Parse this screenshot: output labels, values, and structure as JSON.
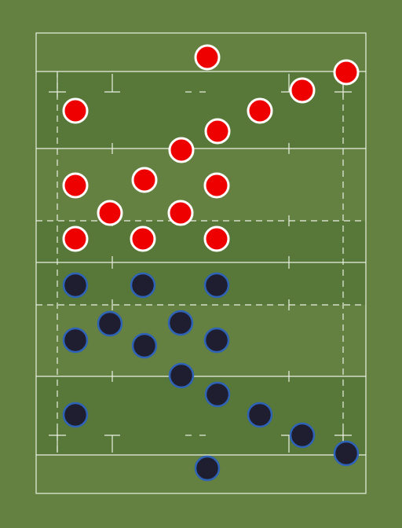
{
  "colors": {
    "background": "#648141",
    "field_light": "#648141",
    "field_dark": "#587839",
    "lines": "#e8efe2",
    "team_red_fill": "#ee0000",
    "team_red_stroke": "#ffffff",
    "team_navy_fill": "#1e1e30",
    "team_navy_stroke": "#2f63b8"
  },
  "pitch": {
    "orientation": "vertical",
    "striped": true,
    "dashed_lines": true
  },
  "teams": [
    {
      "name": "",
      "color": "red",
      "formation_player_count": 15
    },
    {
      "name": "",
      "color": "navy",
      "formation_player_count": 15
    }
  ]
}
